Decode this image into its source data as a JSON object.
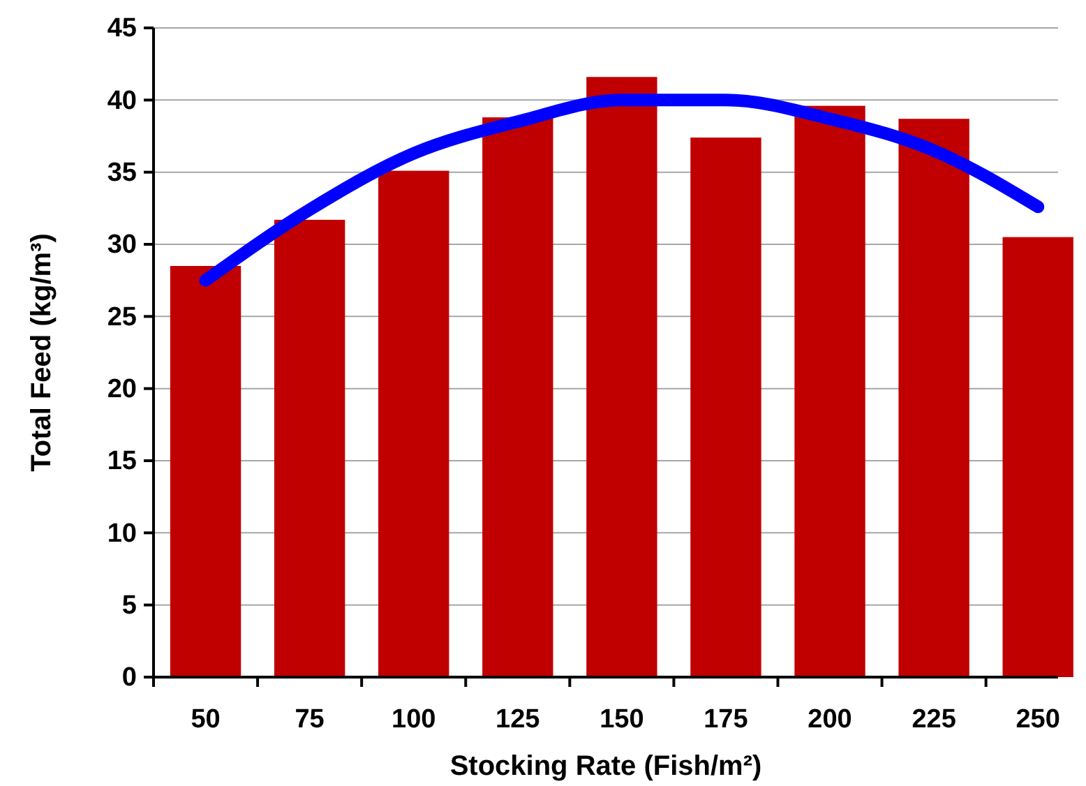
{
  "chart_data": {
    "type": "bar",
    "xlabel": "Stocking Rate (Fish/m²)",
    "ylabel": "Total Feed (kg/m³)",
    "categories": [
      "50",
      "75",
      "100",
      "125",
      "150",
      "175",
      "200",
      "225",
      "250"
    ],
    "series": [
      {
        "color": "#c00000",
        "values": [
          28.5,
          31.7,
          35.1,
          38.8,
          41.6,
          37.4,
          39.6,
          38.7,
          30.5
        ]
      },
      {
        "type": "line",
        "color": "#0000ff",
        "values": [
          27.5,
          32.4,
          36.3,
          38.5,
          40.0,
          40.0,
          38.7,
          36.5,
          32.6
        ]
      }
    ],
    "ylim": [
      0,
      45
    ],
    "yticks": [
      0,
      5,
      10,
      15,
      20,
      25,
      30,
      35,
      40,
      45
    ],
    "grid": "y",
    "marker": "none",
    "line_style": "solid"
  }
}
